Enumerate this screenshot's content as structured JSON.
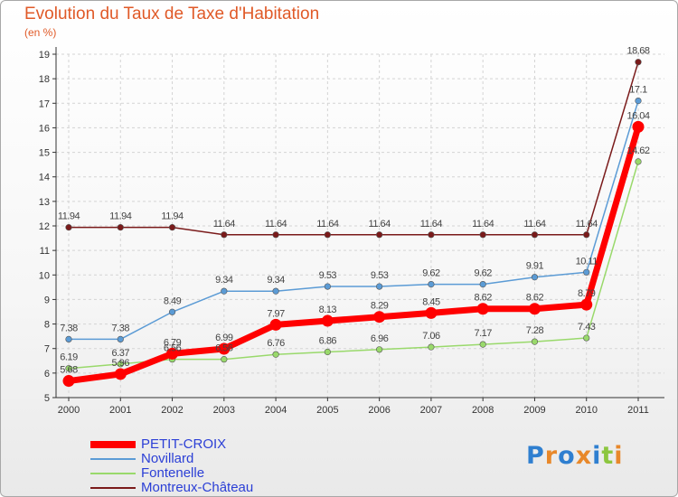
{
  "chart_data": {
    "type": "line",
    "title": "Evolution du Taux de Taxe d'Habitation",
    "subtitle": "(en %)",
    "x": [
      "2000",
      "2001",
      "2002",
      "2003",
      "2004",
      "2005",
      "2006",
      "2007",
      "2008",
      "2009",
      "2010",
      "2011"
    ],
    "ylim": [
      5,
      19
    ],
    "yticks": [
      5,
      6,
      7,
      8,
      9,
      10,
      11,
      12,
      13,
      14,
      15,
      16,
      17,
      18,
      19
    ],
    "grid": true,
    "legend_position": "bottom-left",
    "series": [
      {
        "name": "Montreux-Château",
        "color": "#7a1a1a",
        "values": [
          11.94,
          11.94,
          11.94,
          11.64,
          11.64,
          11.64,
          11.64,
          11.64,
          11.64,
          11.64,
          11.64,
          18.68
        ],
        "labels": [
          "11.94",
          "11.94",
          "11.94",
          "11.64",
          "11.64",
          "11.64",
          "11.64",
          "11.64",
          "11.64",
          "11.64",
          "11.64",
          "18.68"
        ]
      },
      {
        "name": "Novillard",
        "color": "#5b9bd5",
        "values": [
          7.38,
          7.38,
          8.49,
          9.34,
          9.34,
          9.53,
          9.53,
          9.62,
          9.62,
          9.91,
          10.11,
          17.1
        ],
        "labels": [
          "7.38",
          "7.38",
          "8.49",
          "9.34",
          "9.34",
          "9.53",
          "9.53",
          "9.62",
          "9.62",
          "9.91",
          "10.11",
          "17.1"
        ]
      },
      {
        "name": "Fontenelle",
        "color": "#99d96b",
        "values": [
          6.19,
          6.37,
          6.56,
          6.56,
          6.76,
          6.86,
          6.96,
          7.06,
          7.17,
          7.28,
          7.43,
          14.62
        ],
        "labels": [
          "6.19",
          "6.37",
          "6.56",
          "6.56",
          "6.76",
          "6.86",
          "6.96",
          "7.06",
          "7.17",
          "7.28",
          "7.43",
          "14.62"
        ]
      },
      {
        "name": "PETIT-CROIX",
        "color": "#ff0000",
        "values": [
          5.68,
          5.96,
          6.79,
          6.99,
          7.97,
          8.13,
          8.29,
          8.45,
          8.62,
          8.62,
          8.79,
          16.04
        ],
        "labels": [
          "5.68",
          "5.96",
          "6.79",
          "6.99",
          "7.97",
          "8.13",
          "8.29",
          "8.45",
          "8.62",
          "8.62",
          "8.79",
          "16.04"
        ]
      }
    ],
    "legend": [
      {
        "name": "PETIT-CROIX",
        "color": "#ff0000"
      },
      {
        "name": "Novillard",
        "color": "#5b9bd5"
      },
      {
        "name": "Fontenelle",
        "color": "#99d96b"
      },
      {
        "name": "Montreux-Château",
        "color": "#7a1a1a"
      }
    ]
  },
  "brand": {
    "text": "Proxiti",
    "letters": [
      {
        "char": "P",
        "color": "#2f7fd0"
      },
      {
        "char": "r",
        "color": "#e8882a"
      },
      {
        "char": "o",
        "color": "#2f7fd0"
      },
      {
        "char": "x",
        "color": "#e8882a"
      },
      {
        "char": "i",
        "color": "#2f7fd0"
      },
      {
        "char": "t",
        "color": "#8cc63f"
      },
      {
        "char": "i",
        "color": "#e8882a"
      }
    ]
  }
}
